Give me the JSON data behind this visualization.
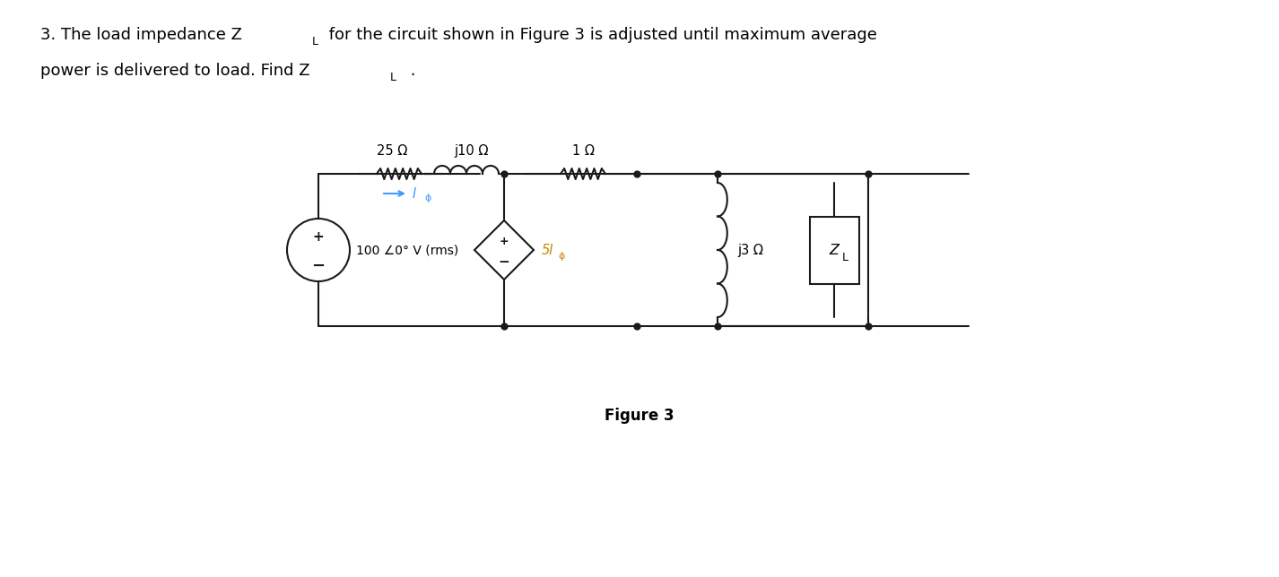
{
  "title_text": "3. The load impedance Z",
  "title_sub_L": "L",
  "title_rest": " for the circuit shown in Figure 3 is adjusted until maximum average",
  "title_line2": "power is delivered to load. Find Z",
  "title_line2_L": "L",
  "title_line2_end": " .",
  "figure_label": "Figure 3",
  "bg_color": "#ffffff",
  "text_color": "#000000",
  "blue_color": "#4499ff",
  "orange_color": "#cc8800",
  "component_color": "#1a1a1a",
  "resistor_label_25": "25 Ω",
  "inductor_label": "j10 Ω",
  "resistor_label_1": "1 Ω",
  "source_label": "100 Σ0° V (rms)",
  "dep_source_label": "5I",
  "j3_label": "j3 Ω",
  "ZL_label": "Z",
  "I_phi_label": "I",
  "phi": "φ"
}
